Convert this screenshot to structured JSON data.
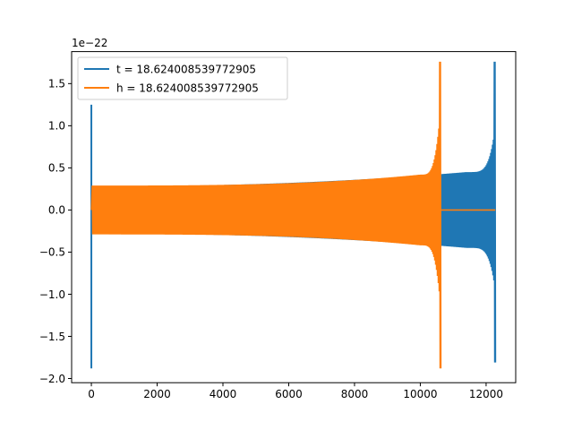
{
  "chart_data": {
    "type": "line",
    "title": "",
    "xlabel": "",
    "ylabel": "",
    "y_scale_label": "1e−22",
    "xlim": [
      -600,
      12900
    ],
    "ylim": [
      -2.05,
      1.88
    ],
    "x_ticks": [
      0,
      2000,
      4000,
      6000,
      8000,
      10000,
      12000
    ],
    "x_tick_labels": [
      "0",
      "2000",
      "4000",
      "6000",
      "8000",
      "10000",
      "12000"
    ],
    "y_ticks": [
      -2.0,
      -1.5,
      -1.0,
      -0.5,
      0.0,
      0.5,
      1.0,
      1.5
    ],
    "y_tick_labels": [
      "−2.0",
      "−1.5",
      "−1.0",
      "−0.5",
      "0.0",
      "0.5",
      "1.0",
      "1.5"
    ],
    "grid": false,
    "legend": {
      "position": "top-left"
    },
    "series": [
      {
        "name": "t = 18.624008539772905",
        "color": "#1f77b4",
        "start_spike": {
          "x": 0,
          "ymax": 1.25,
          "ymin": -1.88
        },
        "chirp": {
          "x_start": 0,
          "x_end": 12280,
          "amp_start": 0.28,
          "amp_mid": 0.45,
          "amp_end_max": 1.76,
          "amp_end_min": -1.81
        }
      },
      {
        "name": "h = 18.624008539772905",
        "color": "#ff7f0e",
        "chirp": {
          "x_start": 0,
          "x_end": 10630,
          "amp_start": 0.29,
          "amp_end_max": 1.76,
          "amp_end_min": -1.88
        },
        "flat": {
          "x_start": 10630,
          "x_end": 12280,
          "y": 0.0
        }
      }
    ]
  }
}
